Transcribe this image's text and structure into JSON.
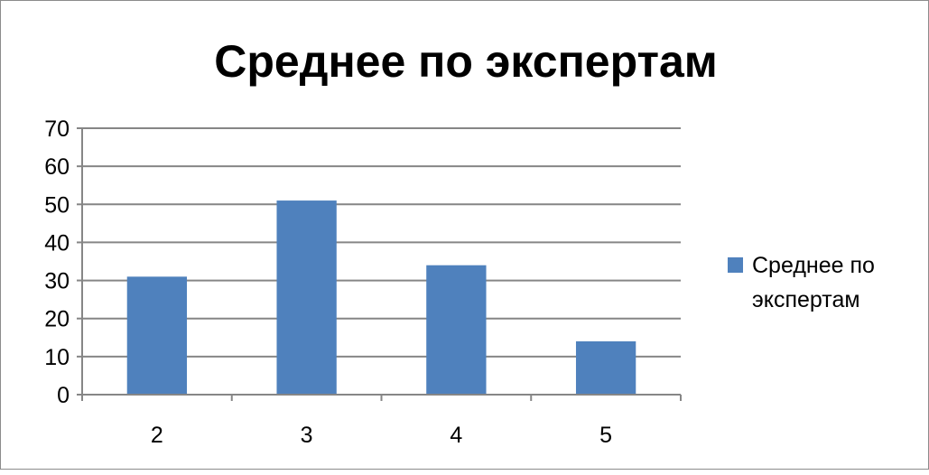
{
  "chart_data": {
    "type": "bar",
    "title": "Среднее по экспертам",
    "categories": [
      "2",
      "3",
      "4",
      "5"
    ],
    "series": [
      {
        "name": "Среднее по экспертам",
        "values": [
          31,
          51,
          34,
          14
        ],
        "color": "#4f81bd"
      }
    ],
    "ylim": [
      0,
      70
    ],
    "yticks": [
      0,
      10,
      20,
      30,
      40,
      50,
      60,
      70
    ],
    "grid": true,
    "legend": "right",
    "legend_lines": [
      "Среднее по",
      "экспертам"
    ]
  }
}
